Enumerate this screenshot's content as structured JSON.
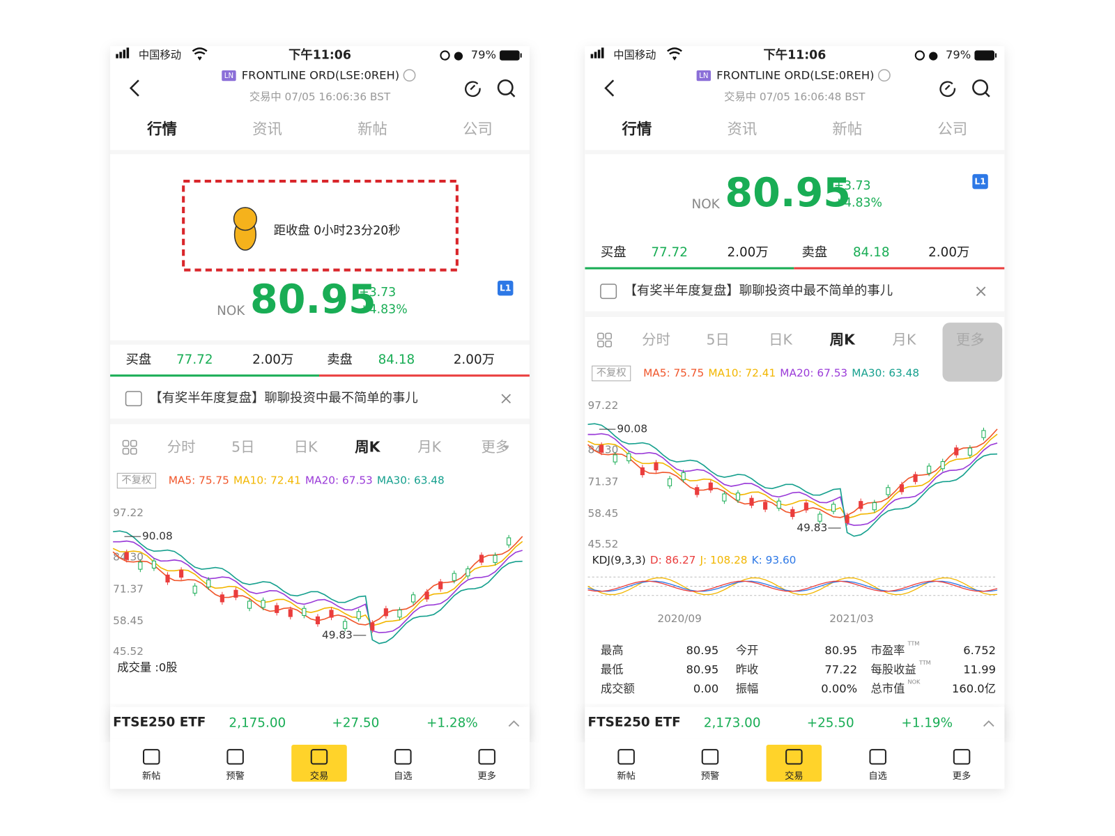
{
  "screens": [
    {
      "status": {
        "carrier": "中国移动",
        "time": "下午11:06",
        "battery": "79%"
      },
      "header": {
        "badge": "LN",
        "title": "FRONTLINE ORD(LSE:0REH)",
        "subtitle": "交易中 07/05 16:06:36 BST"
      },
      "tabs": [
        "行情",
        "资讯",
        "新帖",
        "公司"
      ],
      "countdown": "距收盘 0小时23分20秒",
      "quote": {
        "currency": "NOK",
        "price": "80.95",
        "change": "+3.73",
        "change_pct": "+4.83%",
        "level": "L1"
      },
      "order_book": {
        "bid_label": "买盘",
        "bid_price": "77.72",
        "bid_size": "2.00万",
        "ask_label": "卖盘",
        "ask_price": "84.18",
        "ask_size": "2.00万"
      },
      "banner": "【有奖半年度复盘】聊聊投资中最不简单的事儿",
      "chart_tabs": [
        "分时",
        "5日",
        "日K",
        "周K",
        "月K",
        "更多"
      ],
      "adjust": "不复权",
      "ma": [
        "MA5: 75.75",
        "MA10: 72.41",
        "MA20: 67.53",
        "MA30: 63.48"
      ],
      "y_labels": [
        "97.22",
        "84.30",
        "71.37",
        "58.45",
        "45.52"
      ],
      "high_note": "90.08",
      "low_note": "49.83",
      "volume": "成交量 :0股",
      "ticker": {
        "name": "FTSE250 ETF",
        "price": "2,175.00",
        "change": "+27.50",
        "change_pct": "+1.28%"
      },
      "nav": [
        "新帖",
        "预警",
        "交易",
        "自选",
        "更多"
      ]
    },
    {
      "status": {
        "carrier": "中国移动",
        "time": "下午11:06",
        "battery": "79%"
      },
      "header": {
        "badge": "LN",
        "title": "FRONTLINE ORD(LSE:0REH)",
        "subtitle": "交易中 07/05 16:06:48 BST"
      },
      "tabs": [
        "行情",
        "资讯",
        "新帖",
        "公司"
      ],
      "quote": {
        "currency": "NOK",
        "price": "80.95",
        "change": "+3.73",
        "change_pct": "+4.83%",
        "level": "L1"
      },
      "order_book": {
        "bid_label": "买盘",
        "bid_price": "77.72",
        "bid_size": "2.00万",
        "ask_label": "卖盘",
        "ask_price": "84.18",
        "ask_size": "2.00万"
      },
      "banner": "【有奖半年度复盘】聊聊投资中最不简单的事儿",
      "chart_tabs": [
        "分时",
        "5日",
        "日K",
        "周K",
        "月K",
        "更多"
      ],
      "adjust": "不复权",
      "ma": [
        "MA5: 75.75",
        "MA10: 72.41",
        "MA20: 67.53",
        "MA30: 63.48"
      ],
      "y_labels": [
        "97.22",
        "84.30",
        "71.37",
        "58.45",
        "45.52"
      ],
      "high_note": "90.08",
      "low_note": "49.83",
      "kdj": [
        "KDJ(9,3,3)",
        "D: 86.27",
        "J: 108.28",
        "K: 93.60"
      ],
      "x_labels": [
        "2020/09",
        "2021/03"
      ],
      "stats": [
        [
          {
            "label": "最高",
            "value": "80.95"
          },
          {
            "label": "今开",
            "value": "80.95"
          },
          {
            "label": "市盈率",
            "sup": "TTM",
            "value": "6.752"
          }
        ],
        [
          {
            "label": "最低",
            "value": "80.95"
          },
          {
            "label": "昨收",
            "value": "77.22"
          },
          {
            "label": "每股收益",
            "sup": "TTM",
            "value": "11.99"
          }
        ],
        [
          {
            "label": "成交额",
            "value": "0.00"
          },
          {
            "label": "振幅",
            "value": "0.00%"
          },
          {
            "label": "总市值",
            "sup": "NOK",
            "value": "160.0亿"
          }
        ]
      ],
      "ticker": {
        "name": "FTSE250 ETF",
        "price": "2,173.00",
        "change": "+25.50",
        "change_pct": "+1.19%"
      },
      "nav": [
        "新帖",
        "预警",
        "交易",
        "自选",
        "更多"
      ]
    }
  ]
}
